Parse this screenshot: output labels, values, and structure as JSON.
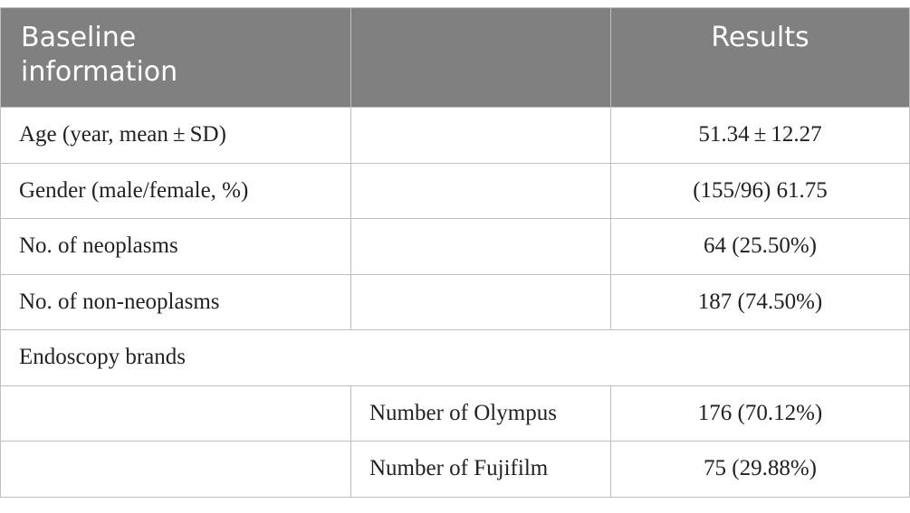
{
  "table": {
    "headers": [
      "Baseline\ninformation",
      "",
      "Results"
    ],
    "rows": [
      {
        "label": "Age (year, mean ± SD)",
        "sub": "",
        "value": "51.34 ± 12.27"
      },
      {
        "label": "Gender (male/female, %)",
        "sub": "",
        "value": "(155/96) 61.75"
      },
      {
        "label": "No. of neoplasms",
        "sub": "",
        "value": "64 (25.50%)"
      },
      {
        "label": "No. of non-neoplasms",
        "sub": "",
        "value": "187 (74.50%)"
      }
    ],
    "section_label": "Endoscopy brands",
    "sub_rows": [
      {
        "label": "",
        "sub": "Number of Olympus",
        "value": "176 (70.12%)"
      },
      {
        "label": "",
        "sub": "Number of Fujifilm",
        "value": "75 (29.88%)"
      }
    ]
  }
}
